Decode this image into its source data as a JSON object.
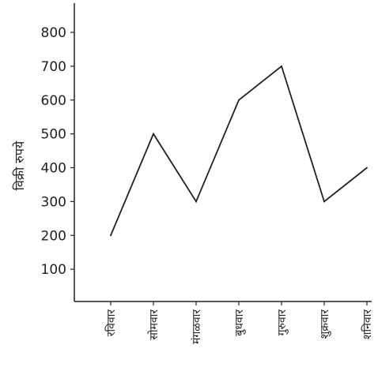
{
  "chart_data": {
    "type": "line",
    "title": "",
    "xlabel": "",
    "ylabel": "विक्री रुपये",
    "categories": [
      "रविवार",
      "सोमवार",
      "मंगळवार",
      "बुधवार",
      "गुरुवार",
      "शुक्रवार",
      "शनिवार"
    ],
    "series": [
      {
        "values": [
          200,
          500,
          300,
          600,
          700,
          300,
          400
        ]
      }
    ],
    "y_ticks": [
      "100",
      "200",
      "300",
      "400",
      "500",
      "600",
      "700",
      "800"
    ],
    "ylim": [
      0,
      800
    ],
    "grid": false,
    "line_color": "#222222"
  }
}
